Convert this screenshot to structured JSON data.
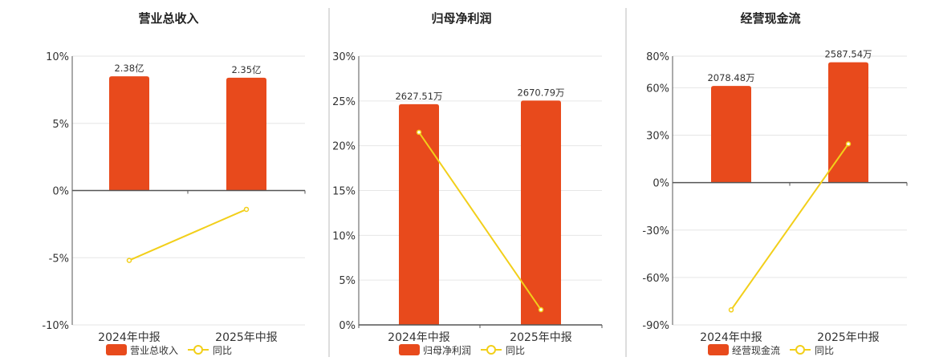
{
  "colors": {
    "bar": "#E84A1C",
    "line": "#F2CF1A",
    "grid": "#e6e6e6",
    "axis": "#555555",
    "divider": "#bbbbbb"
  },
  "legend_line_label": "同比",
  "chart_data": [
    {
      "type": "bar+line",
      "title": "营业总收入",
      "categories": [
        "2024年中报",
        "2025年中报"
      ],
      "bar_values": [
        2.38,
        2.35
      ],
      "bar_unit": "亿",
      "bar_labels": [
        "2.38亿",
        "2.35亿"
      ],
      "bar_series_name": "营业总收入",
      "yoy_values": [
        -5.2,
        -1.4
      ],
      "ylim": [
        -10,
        10
      ],
      "yticks": [
        "10%",
        "5%",
        "0%",
        "-5%",
        "-10%"
      ],
      "yticks_values": [
        10,
        5,
        0,
        -5,
        -10
      ],
      "bar_scale_max": 2.8
    },
    {
      "type": "bar+line",
      "title": "归母净利润",
      "categories": [
        "2024年中报",
        "2025年中报"
      ],
      "bar_values": [
        2627.51,
        2670.79
      ],
      "bar_unit": "万",
      "bar_labels": [
        "2627.51万",
        "2670.79万"
      ],
      "bar_series_name": "归母净利润",
      "yoy_values": [
        21.5,
        1.7
      ],
      "ylim": [
        0,
        30
      ],
      "yticks": [
        "30%",
        "25%",
        "20%",
        "15%",
        "10%",
        "5%",
        "0%"
      ],
      "yticks_values": [
        30,
        25,
        20,
        15,
        10,
        5,
        0
      ],
      "bar_scale_max": 3200
    },
    {
      "type": "bar+line",
      "title": "经营现金流",
      "categories": [
        "2024年中报",
        "2025年中报"
      ],
      "bar_values": [
        2078.48,
        2587.54
      ],
      "bar_unit": "万",
      "bar_labels": [
        "2078.48万",
        "2587.54万"
      ],
      "bar_series_name": "经营现金流",
      "yoy_values": [
        -80.5,
        24.5
      ],
      "ylim": [
        -90,
        80
      ],
      "yticks": [
        "80%",
        "60%",
        "30%",
        "0%",
        "-30%",
        "-60%",
        "-90%"
      ],
      "yticks_values": [
        80,
        60,
        30,
        0,
        -30,
        -60,
        -90
      ],
      "bar_scale_max": 2720
    }
  ]
}
